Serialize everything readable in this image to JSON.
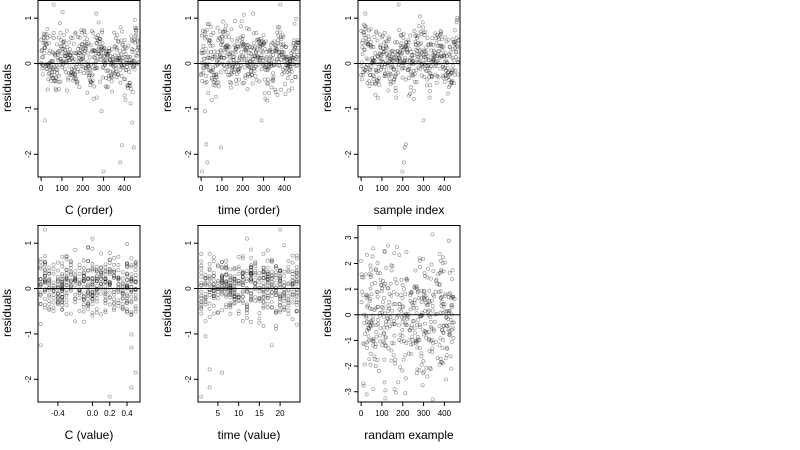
{
  "chart_data": [
    {
      "type": "scatter",
      "xlabel": "C (order)",
      "ylabel": "residuals",
      "xlim": [
        -15,
        475
      ],
      "ylim": [
        -2.5,
        1.4
      ],
      "xticks": [
        0,
        100,
        200,
        300,
        400
      ],
      "yticks": [
        -2,
        -1,
        0,
        1
      ],
      "hline": 0,
      "n_points": 470,
      "seed": 11,
      "x_kind": "index",
      "outliers": [
        {
          "x": 18,
          "y": -1.25
        },
        {
          "x": 300,
          "y": -2.38
        },
        {
          "x": 380,
          "y": -2.18
        },
        {
          "x": 388,
          "y": -1.8
        },
        {
          "x": 445,
          "y": -1.85
        },
        {
          "x": 438,
          "y": -1.3
        },
        {
          "x": 290,
          "y": -1.05
        },
        {
          "x": 60,
          "y": 1.3
        },
        {
          "x": 265,
          "y": 1.1
        }
      ]
    },
    {
      "type": "scatter",
      "xlabel": "time (order)",
      "ylabel": "residuals",
      "xlim": [
        -15,
        475
      ],
      "ylim": [
        -2.5,
        1.4
      ],
      "xticks": [
        0,
        100,
        200,
        300,
        400
      ],
      "yticks": [
        -2,
        -1,
        0,
        1
      ],
      "hline": 0,
      "n_points": 470,
      "seed": 23,
      "x_kind": "index",
      "outliers": [
        {
          "x": 5,
          "y": -2.38
        },
        {
          "x": 30,
          "y": -2.18
        },
        {
          "x": 25,
          "y": -1.78
        },
        {
          "x": 95,
          "y": -1.85
        },
        {
          "x": 18,
          "y": -1.05
        },
        {
          "x": 290,
          "y": -1.25
        },
        {
          "x": 380,
          "y": 1.3
        },
        {
          "x": 250,
          "y": 1.1
        }
      ]
    },
    {
      "type": "scatter",
      "xlabel": "sample index",
      "ylabel": "residuals",
      "xlim": [
        -15,
        475
      ],
      "ylim": [
        -2.5,
        1.4
      ],
      "xticks": [
        0,
        100,
        200,
        300,
        400
      ],
      "yticks": [
        -2,
        -1,
        0,
        1
      ],
      "hline": 0,
      "n_points": 470,
      "seed": 37,
      "x_kind": "index",
      "outliers": [
        {
          "x": 198,
          "y": -2.38
        },
        {
          "x": 205,
          "y": -2.18
        },
        {
          "x": 210,
          "y": -1.85
        },
        {
          "x": 215,
          "y": -1.78
        },
        {
          "x": 300,
          "y": -1.25
        },
        {
          "x": 180,
          "y": 1.3
        },
        {
          "x": 20,
          "y": 1.1
        }
      ]
    },
    {
      "type": "scatter",
      "xlabel": "C (value)",
      "ylabel": "residuals",
      "xlim": [
        -0.63,
        0.55
      ],
      "ylim": [
        -2.5,
        1.4
      ],
      "xticks": [
        -0.4,
        0.0,
        0.2,
        0.4
      ],
      "xtick_labels": [
        "-0.4",
        "0.0",
        "0.2",
        "0.4"
      ],
      "yticks": [
        -2,
        -1,
        0,
        1
      ],
      "hline": 0,
      "n_points": 470,
      "seed": 41,
      "x_kind": "discrete",
      "x_values": [
        -0.6,
        -0.55,
        -0.5,
        -0.45,
        -0.4,
        -0.35,
        -0.3,
        -0.25,
        -0.2,
        -0.15,
        -0.1,
        -0.05,
        0.0,
        0.05,
        0.1,
        0.15,
        0.2,
        0.25,
        0.3,
        0.35,
        0.4,
        0.45,
        0.5
      ],
      "outliers": [
        {
          "x": 0.2,
          "y": -2.38
        },
        {
          "x": 0.45,
          "y": -2.18
        },
        {
          "x": 0.5,
          "y": -1.85
        },
        {
          "x": 0.45,
          "y": -1.3
        },
        {
          "x": -0.6,
          "y": -1.25
        },
        {
          "x": -0.55,
          "y": 1.3
        },
        {
          "x": 0.0,
          "y": 1.1
        }
      ]
    },
    {
      "type": "scatter",
      "xlabel": "time (value)",
      "ylabel": "residuals",
      "xlim": [
        0.2,
        24.8
      ],
      "ylim": [
        -2.5,
        1.4
      ],
      "xticks": [
        5,
        10,
        15,
        20
      ],
      "yticks": [
        -2,
        -1,
        0,
        1
      ],
      "hline": 0,
      "n_points": 470,
      "seed": 53,
      "x_kind": "discrete",
      "x_values": [
        1,
        2,
        3,
        4,
        5,
        6,
        7,
        8,
        9,
        10,
        11,
        12,
        13,
        14,
        15,
        16,
        17,
        18,
        19,
        20,
        21,
        22,
        23,
        24
      ],
      "outliers": [
        {
          "x": 1,
          "y": -2.38
        },
        {
          "x": 3,
          "y": -2.18
        },
        {
          "x": 6,
          "y": -1.85
        },
        {
          "x": 3,
          "y": -1.78
        },
        {
          "x": 2,
          "y": -1.05
        },
        {
          "x": 18,
          "y": -1.25
        },
        {
          "x": 20,
          "y": 1.3
        },
        {
          "x": 12,
          "y": 1.1
        }
      ]
    },
    {
      "type": "scatter",
      "xlabel": "randam example",
      "ylabel": "residuals",
      "xlim": [
        -15,
        475
      ],
      "ylim": [
        -3.4,
        3.5
      ],
      "xticks": [
        0,
        100,
        200,
        300,
        400
      ],
      "yticks": [
        -3,
        -2,
        -1,
        0,
        1,
        2,
        3
      ],
      "hline": 0,
      "n_points": 450,
      "seed": 71,
      "x_kind": "random",
      "outliers": []
    }
  ]
}
